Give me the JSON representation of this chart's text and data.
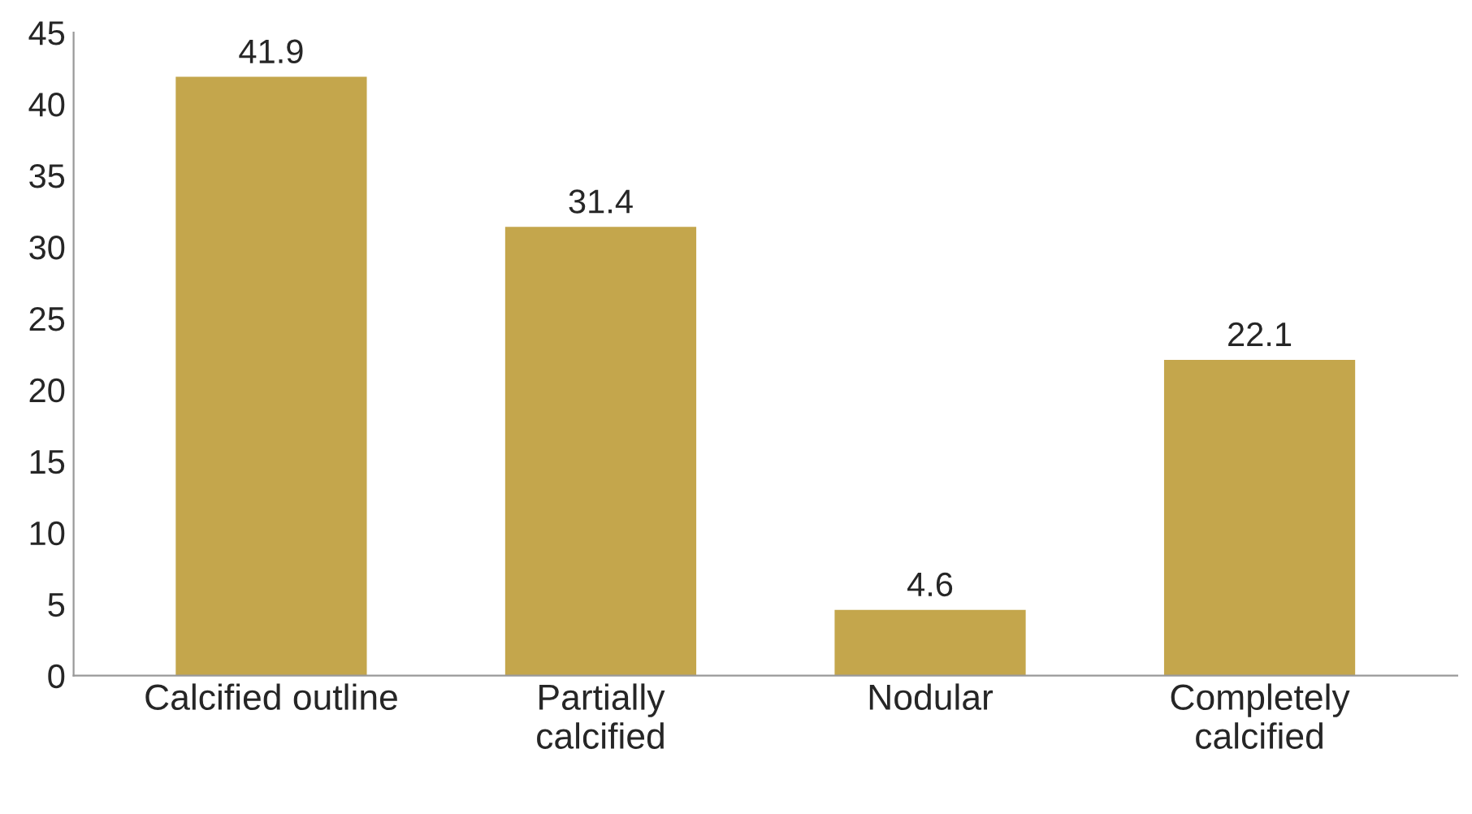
{
  "chart_data": {
    "type": "bar",
    "categories": [
      "Calcified outline",
      "Partially\ncalcified",
      "Nodular",
      "Completely\ncalcified"
    ],
    "values": [
      41.9,
      31.4,
      4.6,
      22.1
    ],
    "color": "#c4a64c",
    "ylim": [
      0,
      45
    ],
    "yticks": [
      0,
      5,
      10,
      15,
      20,
      25,
      30,
      35,
      40,
      45
    ],
    "grid": false,
    "data_labels": true
  }
}
